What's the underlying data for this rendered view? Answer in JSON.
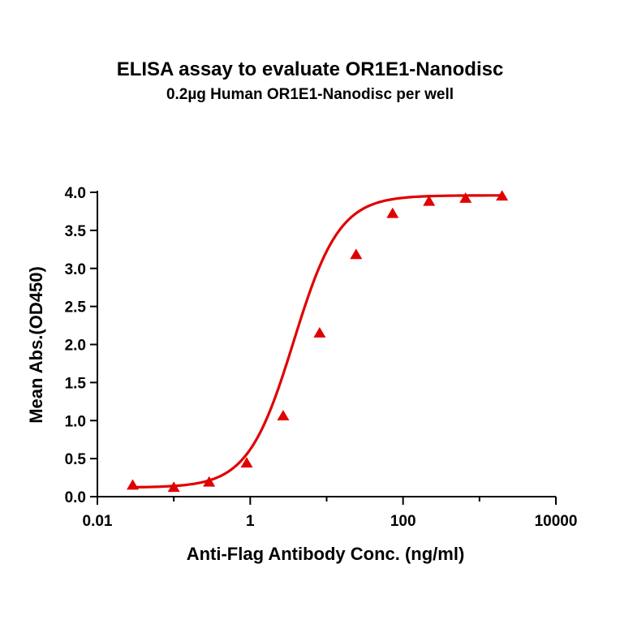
{
  "chart_data": {
    "type": "scatter",
    "title": "ELISA assay to evaluate OR1E1-Nanodisc",
    "subtitle": "0.2µg Human OR1E1-Nanodisc per well",
    "xlabel": "Anti-Flag Antibody Conc. (ng/ml)",
    "ylabel": "Mean Abs.(OD450)",
    "xscale": "log",
    "xlim": [
      0.01,
      10000
    ],
    "ylim": [
      0,
      4.0
    ],
    "x_ticks": [
      "0.01",
      "1",
      "100",
      "10000"
    ],
    "x_tick_values": [
      0.01,
      1,
      100,
      10000
    ],
    "y_ticks": [
      "0.0",
      "0.5",
      "1.0",
      "1.5",
      "2.0",
      "2.5",
      "3.0",
      "3.5",
      "4.0"
    ],
    "y_tick_values": [
      0,
      0.5,
      1.0,
      1.5,
      2.0,
      2.5,
      3.0,
      3.5,
      4.0
    ],
    "color": "#e00000",
    "marker": "triangle",
    "fit": "4-parameter logistic",
    "grid": false,
    "series": [
      {
        "x": [
          0.029,
          0.1,
          0.29,
          0.9,
          2.7,
          8.1,
          24.3,
          73,
          219,
          658,
          1975
        ],
        "y": [
          0.15,
          0.12,
          0.19,
          0.44,
          1.06,
          2.15,
          3.18,
          3.72,
          3.88,
          3.92,
          3.95
        ]
      }
    ]
  }
}
